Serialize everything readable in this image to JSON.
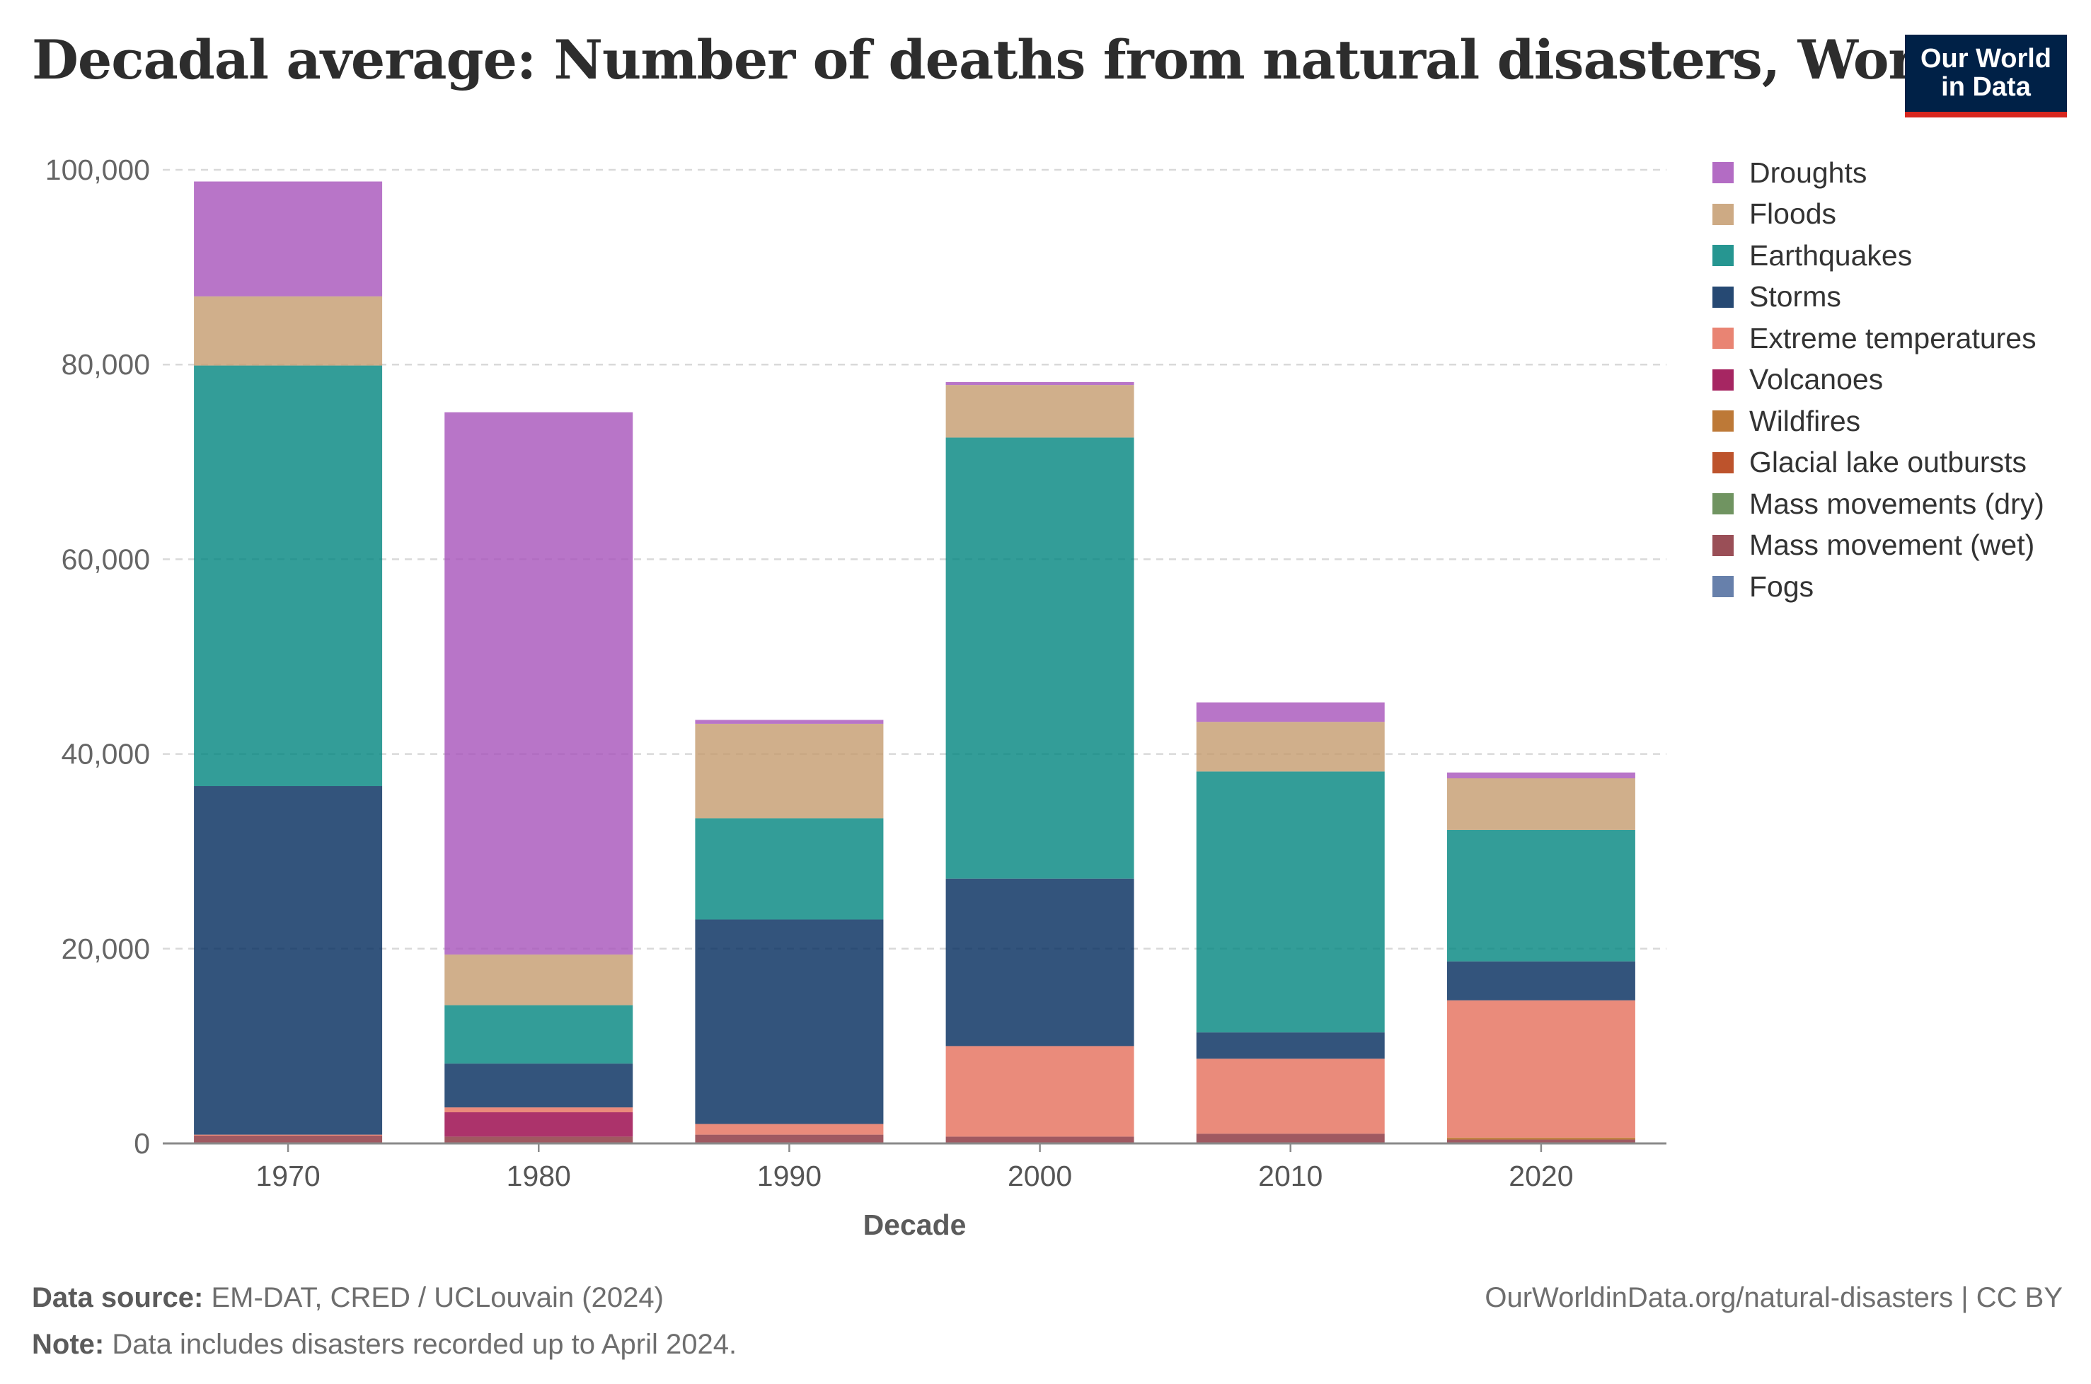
{
  "header": {
    "title": "Decadal average: Number of deaths from natural disasters, World",
    "logo_line1": "Our World",
    "logo_line2": "in Data"
  },
  "footer": {
    "source_label": "Data source:",
    "source_text": "EM-DAT, CRED / UCLouvain (2024)",
    "note_label": "Note:",
    "note_text": "Data includes disasters recorded up to April 2024.",
    "url_text": "OurWorldinData.org/natural-disasters | CC BY"
  },
  "colors": {
    "logo_bg": "#002147",
    "logo_bar": "#d7261e"
  },
  "chart_data": {
    "type": "bar",
    "stacked": true,
    "title": "Decadal average: Number of deaths from natural disasters, World",
    "xlabel": "Decade",
    "ylabel": "",
    "ylim": [
      0,
      100000
    ],
    "yticks": [
      0,
      20000,
      40000,
      60000,
      80000,
      100000
    ],
    "ytick_labels": [
      "0",
      "20,000",
      "40,000",
      "60,000",
      "80,000",
      "100,000"
    ],
    "grid": true,
    "legend_position": "right",
    "categories": [
      "1970",
      "1980",
      "1990",
      "2000",
      "2010",
      "2020"
    ],
    "series": [
      {
        "name": "Fogs",
        "color": "#4c6a9c",
        "values": [
          0,
          0,
          0,
          0,
          0,
          0
        ]
      },
      {
        "name": "Mass movement (wet)",
        "color": "#883039",
        "values": [
          800,
          700,
          900,
          700,
          1000,
          400
        ]
      },
      {
        "name": "Mass movements (dry)",
        "color": "#578145",
        "values": [
          0,
          0,
          0,
          0,
          0,
          0
        ]
      },
      {
        "name": "Glacial lake outbursts",
        "color": "#b13507",
        "values": [
          0,
          0,
          0,
          0,
          0,
          0
        ]
      },
      {
        "name": "Wildfires",
        "color": "#b16214",
        "values": [
          0,
          0,
          0,
          0,
          0,
          200
        ]
      },
      {
        "name": "Volcanoes",
        "color": "#970046",
        "values": [
          0,
          2500,
          0,
          0,
          0,
          0
        ]
      },
      {
        "name": "Extreme temperatures",
        "color": "#e56e5a",
        "values": [
          100,
          500,
          1100,
          9300,
          7700,
          14100
        ]
      },
      {
        "name": "Storms",
        "color": "#00295b",
        "values": [
          35800,
          4500,
          21000,
          17200,
          2700,
          4000
        ]
      },
      {
        "name": "Earthquakes",
        "color": "#00847e",
        "values": [
          43200,
          6000,
          10400,
          45300,
          26800,
          13500
        ]
      },
      {
        "name": "Floods",
        "color": "#c49b6e",
        "values": [
          7100,
          5200,
          9700,
          5400,
          5100,
          5300
        ]
      },
      {
        "name": "Droughts",
        "color": "#a652ba",
        "values": [
          11800,
          55700,
          400,
          300,
          2000,
          600
        ]
      }
    ],
    "legend_order": [
      "Droughts",
      "Floods",
      "Earthquakes",
      "Storms",
      "Extreme temperatures",
      "Volcanoes",
      "Wildfires",
      "Glacial lake outbursts",
      "Mass movements (dry)",
      "Mass movement (wet)",
      "Fogs"
    ]
  }
}
